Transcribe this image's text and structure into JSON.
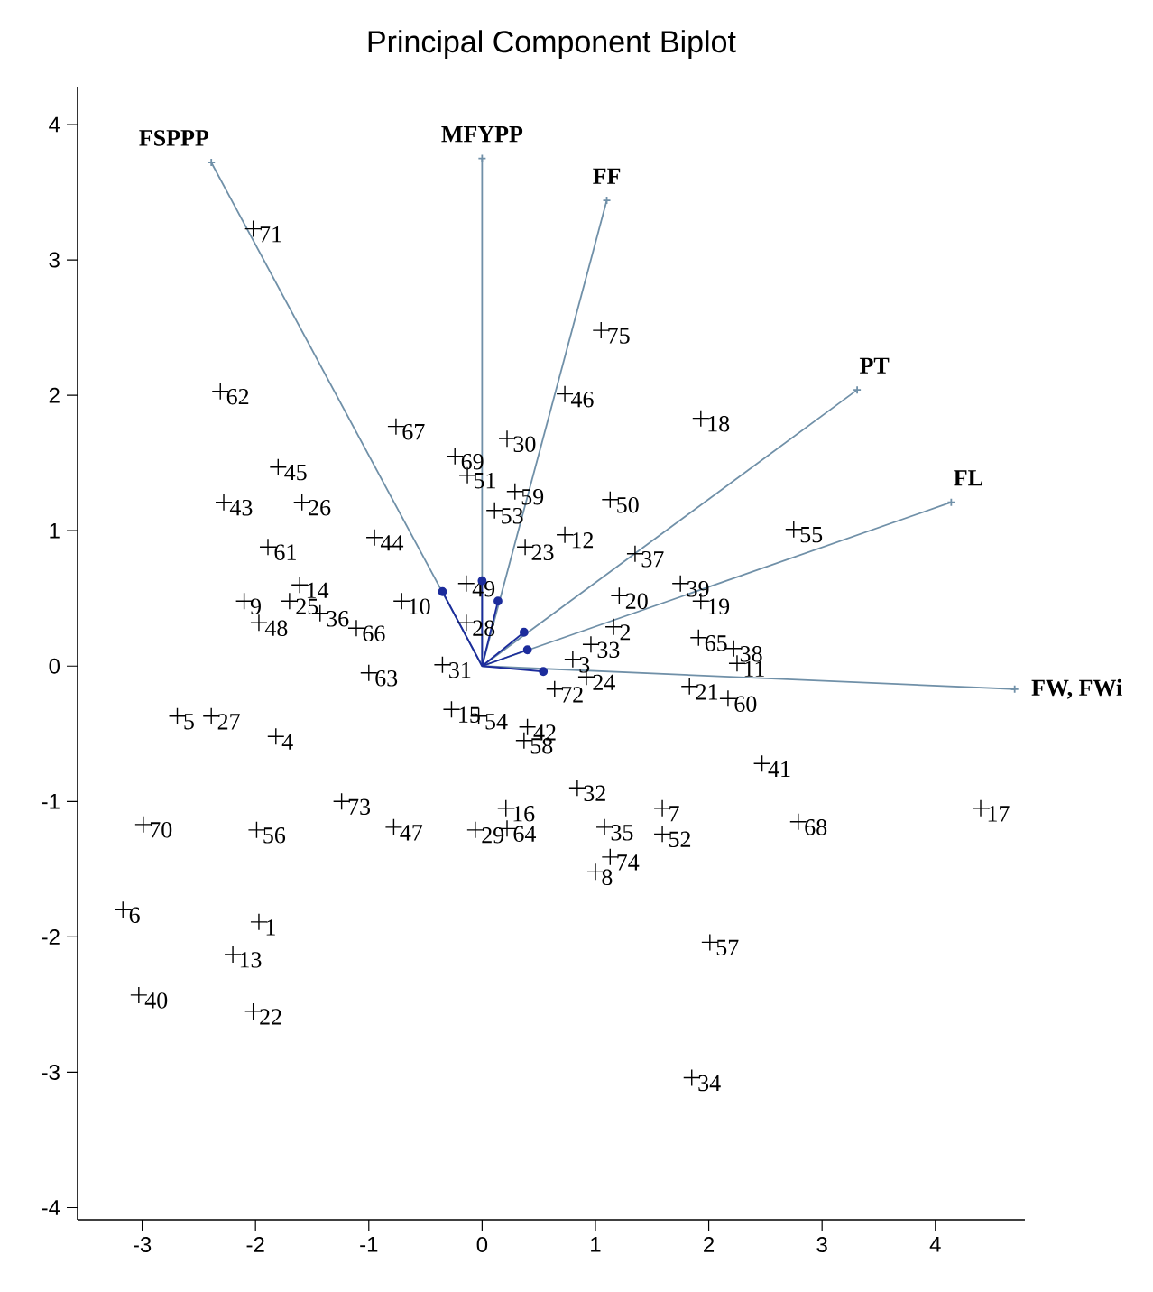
{
  "chart_data": {
    "type": "scatter",
    "title": "Principal Component Biplot",
    "xlim": [
      -3.57,
      4.79
    ],
    "ylim": [
      -4.09,
      4.28
    ],
    "xticks": [
      -3,
      -2,
      -1,
      0,
      1,
      2,
      3,
      4
    ],
    "yticks": [
      -4,
      -3,
      -2,
      -1,
      0,
      1,
      2,
      3,
      4
    ],
    "marker": "cross",
    "series": [
      {
        "color": "#000000",
        "x": [
          -2.02,
          -2.31,
          -0.76,
          -0.24,
          0.22,
          -0.13,
          0.29,
          0.11,
          0.38,
          -1.8,
          -2.28,
          -1.59,
          -1.89,
          -0.95,
          -1.61,
          -2.1,
          -1.7,
          -1.97,
          -1.43,
          -1.11,
          -0.71,
          -0.14,
          -0.14,
          -0.35,
          -1.0,
          -2.69,
          -2.39,
          -1.82,
          -0.27,
          -0.03,
          0.4,
          0.37,
          0.64,
          0.8,
          0.92,
          0.96,
          1.16,
          1.91,
          2.22,
          2.25,
          1.83,
          2.17,
          2.47,
          0.84,
          0.21,
          -0.06,
          0.22,
          1.08,
          1.59,
          1.59,
          1.13,
          1.0,
          2.79,
          4.4,
          2.01,
          1.85,
          -1.24,
          -0.78,
          -1.99,
          -2.99,
          -3.17,
          -1.97,
          -2.2,
          -3.03,
          -2.02,
          1.05,
          0.73,
          1.93,
          1.13,
          0.73,
          1.35,
          1.21,
          1.75,
          1.93,
          2.75
        ],
        "values": [
          3.23,
          2.03,
          1.77,
          1.55,
          1.68,
          1.41,
          1.29,
          1.15,
          0.88,
          1.47,
          1.21,
          1.21,
          0.88,
          0.95,
          0.6,
          0.48,
          0.48,
          0.32,
          0.39,
          0.28,
          0.48,
          0.61,
          0.32,
          0.01,
          -0.05,
          -0.37,
          -0.37,
          -0.52,
          -0.32,
          -0.37,
          -0.45,
          -0.55,
          -0.17,
          0.05,
          -0.08,
          0.16,
          0.29,
          0.21,
          0.13,
          0.02,
          -0.15,
          -0.24,
          -0.72,
          -0.9,
          -1.05,
          -1.21,
          -1.2,
          -1.19,
          -1.05,
          -1.24,
          -1.41,
          -1.52,
          -1.15,
          -1.05,
          -2.04,
          -3.04,
          -1.0,
          -1.19,
          -1.21,
          -1.17,
          -1.8,
          -1.89,
          -2.13,
          -2.43,
          -2.55,
          2.48,
          2.01,
          1.83,
          1.23,
          0.97,
          0.83,
          0.52,
          0.61,
          0.48,
          1.01
        ]
      },
      {
        "type": "line",
        "color": "#7090a8",
        "x": [
          0,
          -2.39
        ],
        "values": [
          0,
          3.72
        ]
      },
      {
        "type": "line",
        "color": "#7090a8",
        "x": [
          0,
          0
        ],
        "values": [
          0,
          3.75
        ]
      },
      {
        "type": "line",
        "color": "#7090a8",
        "x": [
          0,
          1.1
        ],
        "values": [
          0,
          3.44
        ]
      },
      {
        "type": "line",
        "color": "#7090a8",
        "x": [
          0,
          3.31
        ],
        "values": [
          0,
          2.04
        ]
      },
      {
        "type": "line",
        "color": "#7090a8",
        "x": [
          0,
          4.14
        ],
        "values": [
          0,
          1.21
        ]
      },
      {
        "type": "line",
        "color": "#7090a8",
        "x": [
          0,
          4.7
        ],
        "values": [
          0,
          -0.17
        ]
      },
      {
        "type": "line",
        "color": "#1c2c9c",
        "marker": "circle",
        "x": [
          0,
          -0.35
        ],
        "values": [
          0,
          0.55
        ]
      },
      {
        "type": "line",
        "color": "#1c2c9c",
        "marker": "circle",
        "x": [
          0,
          0
        ],
        "values": [
          0,
          0.63
        ]
      },
      {
        "type": "line",
        "color": "#1c2c9c",
        "marker": "circle",
        "x": [
          0,
          0.14
        ],
        "values": [
          0,
          0.48
        ]
      },
      {
        "type": "line",
        "color": "#1c2c9c",
        "marker": "circle",
        "x": [
          0,
          0.37
        ],
        "values": [
          0,
          0.25
        ]
      },
      {
        "type": "line",
        "color": "#1c2c9c",
        "marker": "circle",
        "x": [
          0,
          0.4
        ],
        "values": [
          0,
          0.12
        ]
      },
      {
        "type": "line",
        "color": "#1c2c9c",
        "marker": "circle",
        "x": [
          0,
          0.54
        ],
        "values": [
          0,
          -0.04
        ]
      }
    ],
    "annotations": [
      {
        "text": "FSPPP",
        "x": -2.39,
        "y": 3.72
      },
      {
        "text": "MFYPP",
        "x": 0,
        "y": 3.75
      },
      {
        "text": "FF",
        "x": 1.1,
        "y": 3.44
      },
      {
        "text": "PT",
        "x": 3.31,
        "y": 2.04
      },
      {
        "text": "FL",
        "x": 4.14,
        "y": 1.21
      },
      {
        "text": "FW, FWi",
        "x": 4.7,
        "y": -0.17
      },
      {
        "text": "71",
        "x": -2.02,
        "y": 3.23
      },
      {
        "text": "62",
        "x": -2.31,
        "y": 2.03
      },
      {
        "text": "67",
        "x": -0.76,
        "y": 1.77
      },
      {
        "text": "69",
        "x": -0.24,
        "y": 1.55
      },
      {
        "text": "30",
        "x": 0.22,
        "y": 1.68
      },
      {
        "text": "51",
        "x": -0.13,
        "y": 1.41
      },
      {
        "text": "59",
        "x": 0.29,
        "y": 1.29
      },
      {
        "text": "53",
        "x": 0.11,
        "y": 1.15
      },
      {
        "text": "23",
        "x": 0.38,
        "y": 0.88
      },
      {
        "text": "45",
        "x": -1.8,
        "y": 1.47
      },
      {
        "text": "43",
        "x": -2.28,
        "y": 1.21
      },
      {
        "text": "26",
        "x": -1.59,
        "y": 1.21
      },
      {
        "text": "61",
        "x": -1.89,
        "y": 0.88
      },
      {
        "text": "44",
        "x": -0.95,
        "y": 0.95
      },
      {
        "text": "14",
        "x": -1.61,
        "y": 0.6
      },
      {
        "text": "9",
        "x": -2.1,
        "y": 0.48
      },
      {
        "text": "25",
        "x": -1.7,
        "y": 0.48
      },
      {
        "text": "48",
        "x": -1.97,
        "y": 0.32
      },
      {
        "text": "36",
        "x": -1.43,
        "y": 0.39
      },
      {
        "text": "66",
        "x": -1.11,
        "y": 0.28
      },
      {
        "text": "10",
        "x": -0.71,
        "y": 0.48
      },
      {
        "text": "49",
        "x": -0.14,
        "y": 0.61
      },
      {
        "text": "28",
        "x": -0.14,
        "y": 0.32
      },
      {
        "text": "31",
        "x": -0.35,
        "y": 0.01
      },
      {
        "text": "63",
        "x": -1.0,
        "y": -0.05
      },
      {
        "text": "5",
        "x": -2.69,
        "y": -0.37
      },
      {
        "text": "27",
        "x": -2.39,
        "y": -0.37
      },
      {
        "text": "4",
        "x": -1.82,
        "y": -0.52
      },
      {
        "text": "15",
        "x": -0.27,
        "y": -0.32
      },
      {
        "text": "54",
        "x": -0.03,
        "y": -0.37
      },
      {
        "text": "42",
        "x": 0.4,
        "y": -0.45
      },
      {
        "text": "58",
        "x": 0.37,
        "y": -0.55
      },
      {
        "text": "72",
        "x": 0.64,
        "y": -0.17
      },
      {
        "text": "3",
        "x": 0.8,
        "y": 0.05
      },
      {
        "text": "24",
        "x": 0.92,
        "y": -0.08
      },
      {
        "text": "33",
        "x": 0.96,
        "y": 0.16
      },
      {
        "text": "2",
        "x": 1.16,
        "y": 0.29
      },
      {
        "text": "65",
        "x": 1.91,
        "y": 0.21
      },
      {
        "text": "38",
        "x": 2.22,
        "y": 0.13
      },
      {
        "text": "11",
        "x": 2.25,
        "y": 0.02
      },
      {
        "text": "21",
        "x": 1.83,
        "y": -0.15
      },
      {
        "text": "60",
        "x": 2.17,
        "y": -0.24
      },
      {
        "text": "41",
        "x": 2.47,
        "y": -0.72
      },
      {
        "text": "32",
        "x": 0.84,
        "y": -0.9
      },
      {
        "text": "16",
        "x": 0.21,
        "y": -1.05
      },
      {
        "text": "29",
        "x": -0.06,
        "y": -1.21
      },
      {
        "text": "64",
        "x": 0.22,
        "y": -1.2
      },
      {
        "text": "35",
        "x": 1.08,
        "y": -1.19
      },
      {
        "text": "7",
        "x": 1.59,
        "y": -1.05
      },
      {
        "text": "52",
        "x": 1.59,
        "y": -1.24
      },
      {
        "text": "74",
        "x": 1.13,
        "y": -1.41
      },
      {
        "text": "8",
        "x": 1.0,
        "y": -1.52
      },
      {
        "text": "68",
        "x": 2.79,
        "y": -1.15
      },
      {
        "text": "17",
        "x": 4.4,
        "y": -1.05
      },
      {
        "text": "57",
        "x": 2.01,
        "y": -2.04
      },
      {
        "text": "34",
        "x": 1.85,
        "y": -3.04
      },
      {
        "text": "73",
        "x": -1.24,
        "y": -1.0
      },
      {
        "text": "47",
        "x": -0.78,
        "y": -1.19
      },
      {
        "text": "56",
        "x": -1.99,
        "y": -1.21
      },
      {
        "text": "70",
        "x": -2.99,
        "y": -1.17
      },
      {
        "text": "6",
        "x": -3.17,
        "y": -1.8
      },
      {
        "text": "1",
        "x": -1.97,
        "y": -1.89
      },
      {
        "text": "13",
        "x": -2.2,
        "y": -2.13
      },
      {
        "text": "40",
        "x": -3.03,
        "y": -2.43
      },
      {
        "text": "22",
        "x": -2.02,
        "y": -2.55
      },
      {
        "text": "75",
        "x": 1.05,
        "y": 2.48
      },
      {
        "text": "46",
        "x": 0.73,
        "y": 2.01
      },
      {
        "text": "18",
        "x": 1.93,
        "y": 1.83
      },
      {
        "text": "50",
        "x": 1.13,
        "y": 1.23
      },
      {
        "text": "12",
        "x": 0.73,
        "y": 0.97
      },
      {
        "text": "37",
        "x": 1.35,
        "y": 0.83
      },
      {
        "text": "20",
        "x": 1.21,
        "y": 0.52
      },
      {
        "text": "39",
        "x": 1.75,
        "y": 0.61
      },
      {
        "text": "19",
        "x": 1.93,
        "y": 0.48
      },
      {
        "text": "55",
        "x": 2.75,
        "y": 1.01
      }
    ]
  }
}
